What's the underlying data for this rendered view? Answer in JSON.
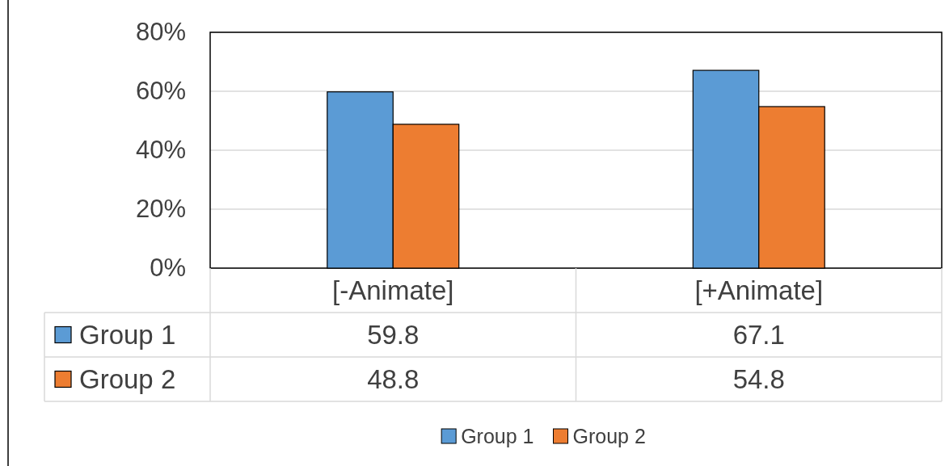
{
  "chart_data": {
    "type": "bar",
    "categories": [
      "[-Animate]",
      "[+Animate]"
    ],
    "series": [
      {
        "name": "Group 1",
        "color": "#5b9bd5",
        "values": [
          59.8,
          67.1
        ]
      },
      {
        "name": "Group 2",
        "color": "#ed7d31",
        "values": [
          48.8,
          54.8
        ]
      }
    ],
    "ylim": [
      0,
      80
    ],
    "yticks": [
      {
        "value": 0,
        "label": "0%"
      },
      {
        "value": 20,
        "label": "20%"
      },
      {
        "value": 40,
        "label": "40%"
      },
      {
        "value": 60,
        "label": "60%"
      },
      {
        "value": 80,
        "label": "80%"
      }
    ],
    "grid": "y",
    "legend": "bottom",
    "data_labels": true
  }
}
